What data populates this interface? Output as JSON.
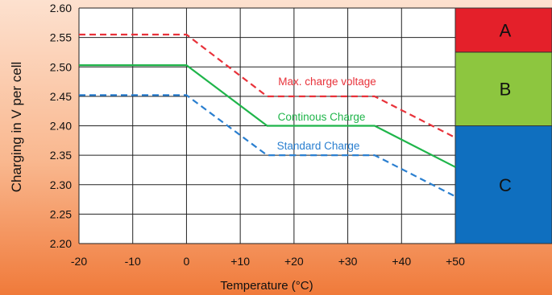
{
  "chart_data": {
    "type": "line",
    "xlabel": "Temperature (°C)",
    "ylabel": "Charging in V per cell",
    "xlim": [
      -20,
      50
    ],
    "ylim": [
      2.2,
      2.6
    ],
    "x_ticks": [
      -20,
      -10,
      0,
      10,
      20,
      30,
      40,
      50
    ],
    "x_tick_labels": [
      "-20",
      "-10",
      "0",
      "+10",
      "+20",
      "+30",
      "+40",
      "+50"
    ],
    "y_ticks": [
      2.2,
      2.25,
      2.3,
      2.35,
      2.4,
      2.45,
      2.5,
      2.55,
      2.6
    ],
    "y_tick_labels": [
      "2.20",
      "2.25",
      "2.30",
      "2.35",
      "2.40",
      "2.45",
      "2.50",
      "2.55",
      "2.60"
    ],
    "grid": true,
    "series": [
      {
        "name": "Max. charge voltage",
        "color": "#e8323a",
        "style": "dashed",
        "points": [
          [
            -20,
            2.555
          ],
          [
            0,
            2.555
          ],
          [
            15,
            2.45
          ],
          [
            35,
            2.45
          ],
          [
            50,
            2.38
          ]
        ]
      },
      {
        "name": "Continous Charge",
        "color": "#1fb54a",
        "style": "solid",
        "points": [
          [
            -20,
            2.503
          ],
          [
            0,
            2.503
          ],
          [
            15,
            2.4
          ],
          [
            35,
            2.4
          ],
          [
            50,
            2.33
          ]
        ]
      },
      {
        "name": "Standard Charge",
        "color": "#2a7fd0",
        "style": "dashed",
        "points": [
          [
            -20,
            2.452
          ],
          [
            0,
            2.452
          ],
          [
            15,
            2.35
          ],
          [
            35,
            2.35
          ],
          [
            50,
            2.28
          ]
        ]
      }
    ],
    "bands": [
      {
        "label": "A",
        "from": 2.525,
        "to": 2.6,
        "color": "#e4202a"
      },
      {
        "label": "B",
        "from": 2.4,
        "to": 2.525,
        "color": "#8dc63f"
      },
      {
        "label": "C",
        "from": 2.2,
        "to": 2.4,
        "color": "#0f6fbf"
      }
    ]
  }
}
